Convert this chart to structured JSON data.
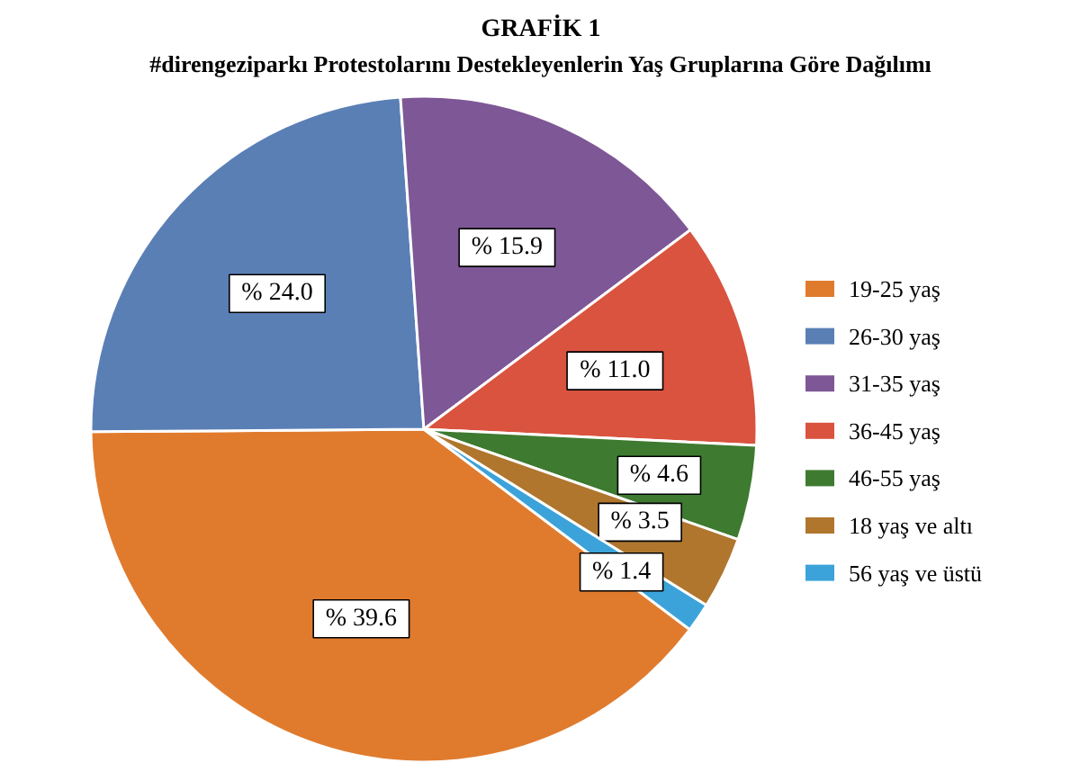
{
  "chart_data": {
    "type": "pie",
    "title": "GRAFİK 1",
    "subtitle": "#direngeziparkı Protestolarını Destekleyenlerin Yaş Gruplarına Göre Dağılımı",
    "categories": [
      "19-25 yaş",
      "26-30 yaş",
      "31-35 yaş",
      "36-45 yaş",
      "46-55 yaş",
      "18 yaş ve altı",
      "56 yaş ve üstü"
    ],
    "values": [
      39.6,
      24.0,
      15.9,
      11.0,
      4.6,
      3.5,
      1.4
    ],
    "value_labels": [
      "% 39.6",
      "% 24.0",
      "% 15.9",
      "% 11.0",
      "% 4.6",
      "% 3.5",
      "% 1.4"
    ],
    "colors": [
      "#e07b2e",
      "#5a7fb5",
      "#7e5796",
      "#d9533f",
      "#3e7a30",
      "#b0762e",
      "#3ba3d9"
    ],
    "legend": "right"
  }
}
